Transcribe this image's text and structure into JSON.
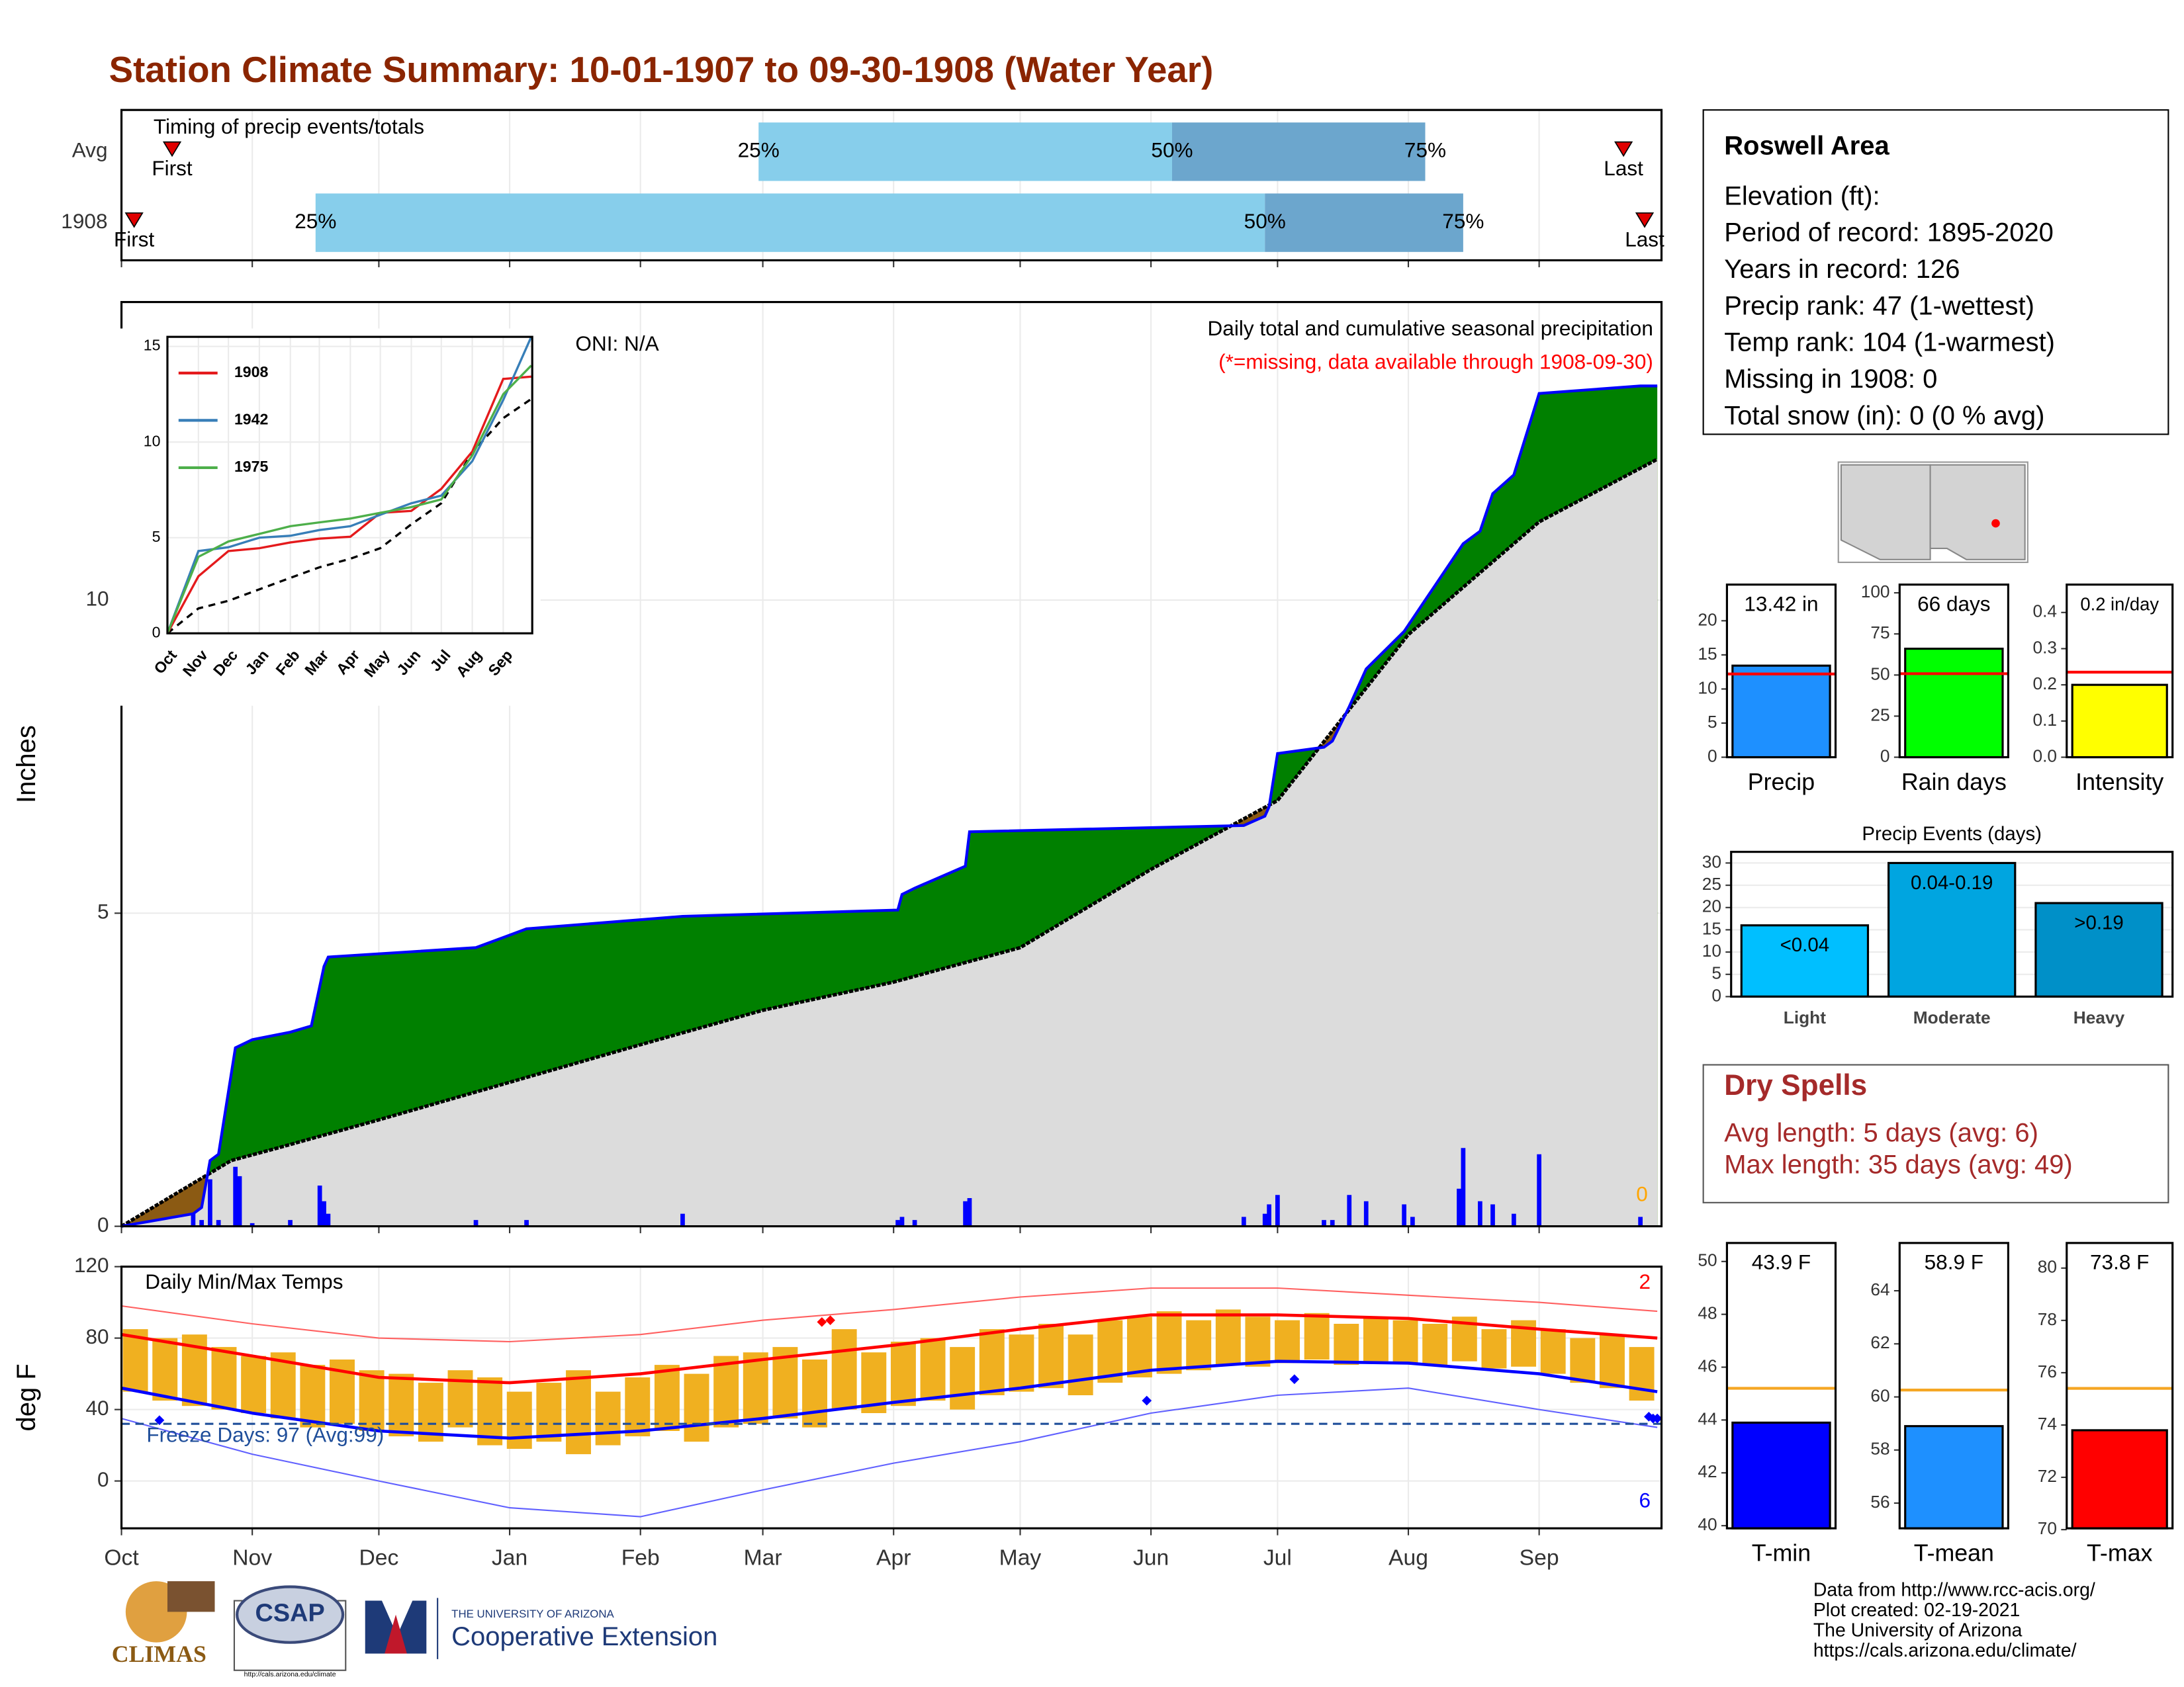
{
  "title": "Station Climate Summary: 10-01-1907 to 09-30-1908 (Water Year)",
  "info": {
    "station": "Roswell Area",
    "lines": [
      "Elevation (ft):",
      "Period of record: 1895-2020",
      "Years in record: 126",
      "Precip rank: 47 (1-wettest)",
      "Temp rank: 104 (1-warmest)",
      "Missing in 1908: 0",
      "Total snow (in): 0 (0 % avg)"
    ]
  },
  "dry_spells": {
    "title": "Dry Spells",
    "lines": [
      "Avg length: 5 days (avg: 6)",
      "Max length: 35 days (avg: 49)"
    ]
  },
  "footer": [
    "Data from http://www.rcc-acis.org/",
    "Plot created: 02-19-2021",
    "The University of Arizona",
    "https://cals.arizona.edu/climate/"
  ],
  "logos": [
    "CLIMAS",
    "CSAP",
    "http://cals.arizona.edu/climate",
    "THE UNIVERSITY OF ARIZONA",
    "Cooperative Extension"
  ],
  "chart_data": [
    {
      "type": "timing",
      "title": "Timing of precip events/totals",
      "categories": [
        "Avg",
        "1908"
      ],
      "first_label": "First",
      "last_label": "Last",
      "quantile_labels": [
        "25%",
        "50%",
        "75%"
      ],
      "rows": [
        {
          "first": 12,
          "q25": 151,
          "q50": 249,
          "q75": 309,
          "last": 356
        },
        {
          "first": 3,
          "q25": 46,
          "q50": 271,
          "q75": 318,
          "last": 361
        }
      ],
      "xlim": [
        0,
        365
      ],
      "colors": [
        "#87ceeb",
        "#6ca6cd"
      ],
      "marker_color": "#e00000"
    },
    {
      "type": "cumulative",
      "title": "Daily total and cumulative seasonal precipitation",
      "subtitle": "(*=missing, data available through 1908-09-30)",
      "annotation": "ONI: N/A",
      "ylabel": "Inches",
      "missing_count": 0,
      "xlim": [
        0,
        365
      ],
      "ylim": [
        0,
        14.76
      ],
      "yticks": [
        0,
        5,
        10
      ],
      "grid": true,
      "cumulative": {
        "color": "#0000ff",
        "above_color": "#008000",
        "x": [
          0,
          17,
          19,
          21,
          23,
          27,
          31,
          40,
          45,
          48,
          49,
          84,
          96,
          133,
          184,
          185,
          188,
          200,
          201,
          266,
          271,
          272,
          274,
          285,
          287,
          291,
          295,
          304,
          318,
          322,
          325,
          330,
          336,
          360,
          364
        ],
        "values": [
          0,
          0.2,
          0.3,
          1.05,
          1.15,
          2.85,
          2.98,
          3.1,
          3.2,
          4.15,
          4.3,
          4.45,
          4.75,
          4.95,
          5.05,
          5.3,
          5.4,
          5.75,
          6.3,
          6.4,
          6.55,
          6.7,
          7.55,
          7.65,
          7.75,
          8.3,
          8.9,
          9.5,
          10.9,
          11.1,
          11.7,
          12.0,
          13.3,
          13.42,
          13.42
        ]
      },
      "average": {
        "color": "#000000",
        "fill": "#dcdcdc",
        "below_color": "#8b5a13",
        "x": [
          0,
          26,
          37,
          61,
          92,
          123,
          152,
          183,
          213,
          244,
          274,
          305,
          336,
          364
        ],
        "values": [
          0,
          1.05,
          1.25,
          1.7,
          2.3,
          2.9,
          3.45,
          3.9,
          4.45,
          5.7,
          6.8,
          9.45,
          11.25,
          12.25
        ]
      },
      "daily": {
        "color": "#0000ff",
        "x": [
          17,
          19,
          21,
          23,
          27,
          28,
          31,
          40,
          47,
          48,
          49,
          84,
          96,
          133,
          184,
          185,
          188,
          200,
          201,
          266,
          271,
          272,
          274,
          285,
          287,
          291,
          295,
          304,
          306,
          317,
          318,
          322,
          325,
          330,
          336,
          360
        ],
        "values": [
          0.2,
          0.1,
          0.75,
          0.1,
          0.95,
          0.8,
          0.05,
          0.1,
          0.65,
          0.4,
          0.2,
          0.1,
          0.1,
          0.2,
          0.1,
          0.15,
          0.1,
          0.4,
          0.45,
          0.15,
          0.2,
          0.35,
          0.5,
          0.1,
          0.1,
          0.5,
          0.4,
          0.35,
          0.15,
          0.6,
          1.25,
          0.4,
          0.35,
          0.2,
          1.15,
          0.15
        ]
      }
    },
    {
      "type": "line",
      "xlim": [
        0,
        365
      ],
      "ylim": [
        0,
        15.5
      ],
      "yticks": [
        0,
        5,
        10,
        15
      ],
      "xticks": [
        {
          "value": 0,
          "label": "Oct"
        },
        {
          "value": 31,
          "label": "Nov"
        },
        {
          "value": 61,
          "label": "Dec"
        },
        {
          "value": 92,
          "label": "Jan"
        },
        {
          "value": 123,
          "label": "Feb"
        },
        {
          "value": 152,
          "label": "Mar"
        },
        {
          "value": 183,
          "label": "Apr"
        },
        {
          "value": 213,
          "label": "May"
        },
        {
          "value": 244,
          "label": "Jun"
        },
        {
          "value": 274,
          "label": "Jul"
        },
        {
          "value": 305,
          "label": "Aug"
        },
        {
          "value": 336,
          "label": "Sep"
        }
      ],
      "x": [
        0,
        31,
        61,
        92,
        123,
        152,
        183,
        213,
        244,
        274,
        305,
        336,
        364
      ],
      "series": [
        {
          "name": "1908",
          "color": "#e41a1c",
          "values": [
            0,
            2.98,
            4.3,
            4.45,
            4.75,
            4.95,
            5.05,
            6.3,
            6.4,
            7.55,
            9.5,
            13.3,
            13.42
          ]
        },
        {
          "name": "1942",
          "color": "#377eb8",
          "values": [
            0,
            4.3,
            4.5,
            5.0,
            5.1,
            5.4,
            5.6,
            6.2,
            6.8,
            7.2,
            9.0,
            12.2,
            15.5
          ]
        },
        {
          "name": "1975",
          "color": "#4daf4a",
          "values": [
            0,
            4.0,
            4.8,
            5.2,
            5.6,
            5.8,
            6.0,
            6.3,
            6.6,
            7.0,
            9.3,
            12.5,
            14.0
          ]
        }
      ],
      "average": {
        "color": "#000000",
        "values": [
          0,
          1.3,
          1.7,
          2.3,
          2.9,
          3.45,
          3.9,
          4.45,
          5.7,
          6.8,
          9.45,
          11.25,
          12.25
        ]
      }
    },
    {
      "type": "bar",
      "categories": [
        "Precip"
      ],
      "values": [
        13.42
      ],
      "value_labels": [
        "13.42 in"
      ],
      "reference": 12.2,
      "reference_color": "#ff0000",
      "color": "#1e90ff",
      "ylim": [
        0,
        25.3
      ],
      "yticks": [
        0,
        5,
        10,
        15,
        20
      ]
    },
    {
      "type": "bar",
      "categories": [
        "Rain days"
      ],
      "values": [
        66
      ],
      "value_labels": [
        "66 days"
      ],
      "reference": 50.8,
      "reference_color": "#ff0000",
      "color": "#00ff00",
      "ylim": [
        0,
        105
      ],
      "yticks": [
        0,
        25,
        50,
        75,
        100
      ]
    },
    {
      "type": "bar",
      "categories": [
        "Intensity"
      ],
      "values": [
        0.2
      ],
      "value_labels": [
        "0.2 in/day"
      ],
      "reference": 0.235,
      "reference_color": "#ff0000",
      "color": "#ffff00",
      "ylim": [
        0,
        0.477
      ],
      "yticks": [
        {
          "value": 0,
          "label": "0.0"
        },
        0.1,
        0.2,
        0.3,
        0.4
      ]
    },
    {
      "type": "bar",
      "title": "Precip Events (days)",
      "categories": [
        "Light",
        "Moderate",
        "Heavy"
      ],
      "values": [
        16,
        30,
        21
      ],
      "bar_labels": [
        "<0.04",
        "0.04-0.19",
        ">0.19"
      ],
      "colors": [
        "#00bfff",
        "#00a5e0",
        "#0090c8"
      ],
      "ylim": [
        0,
        32.5
      ],
      "yticks": [
        0,
        5,
        10,
        15,
        20,
        25,
        30
      ],
      "grid": true
    },
    {
      "type": "temperature",
      "title": "Daily Min/Max Temps",
      "ylabel": "deg F",
      "xlim": [
        0,
        365
      ],
      "ylim": [
        -26.5,
        120
      ],
      "yticks": [
        0,
        40,
        80,
        120
      ],
      "grid": true,
      "xticks": [
        {
          "value": 0,
          "label": "Oct"
        },
        {
          "value": 31,
          "label": "Nov"
        },
        {
          "value": 61,
          "label": "Dec"
        },
        {
          "value": 92,
          "label": "Jan"
        },
        {
          "value": 123,
          "label": "Feb"
        },
        {
          "value": 152,
          "label": "Mar"
        },
        {
          "value": 183,
          "label": "Apr"
        },
        {
          "value": 213,
          "label": "May"
        },
        {
          "value": 244,
          "label": "Jun"
        },
        {
          "value": 274,
          "label": "Jul"
        },
        {
          "value": 305,
          "label": "Aug"
        },
        {
          "value": 336,
          "label": "Sep"
        }
      ],
      "daily": {
        "color": "#f0b020",
        "x": [
          0,
          7,
          14,
          21,
          28,
          35,
          42,
          49,
          56,
          63,
          70,
          77,
          84,
          91,
          98,
          105,
          112,
          119,
          126,
          133,
          140,
          147,
          154,
          161,
          168,
          175,
          182,
          189,
          196,
          203,
          210,
          217,
          224,
          231,
          238,
          245,
          252,
          259,
          266,
          273,
          280,
          287,
          294,
          301,
          308,
          315,
          322,
          329,
          336,
          343,
          350,
          357
        ],
        "max": [
          85,
          80,
          82,
          75,
          70,
          72,
          65,
          68,
          62,
          60,
          55,
          62,
          58,
          50,
          55,
          62,
          50,
          58,
          65,
          60,
          70,
          72,
          75,
          68,
          85,
          72,
          78,
          80,
          75,
          85,
          82,
          88,
          82,
          90,
          92,
          95,
          90,
          96,
          92,
          90,
          94,
          88,
          92,
          90,
          88,
          92,
          85,
          90,
          85,
          80,
          82,
          75
        ],
        "min": [
          50,
          45,
          42,
          40,
          38,
          35,
          30,
          32,
          28,
          25,
          22,
          30,
          20,
          18,
          22,
          15,
          20,
          25,
          28,
          22,
          30,
          32,
          35,
          30,
          40,
          38,
          42,
          45,
          40,
          48,
          50,
          52,
          48,
          55,
          58,
          60,
          62,
          65,
          64,
          66,
          68,
          65,
          67,
          66,
          65,
          67,
          63,
          64,
          60,
          55,
          52,
          45
        ]
      },
      "monthly_x": [
        0,
        31,
        61,
        92,
        123,
        152,
        183,
        213,
        244,
        274,
        305,
        336,
        364
      ],
      "normal_max": {
        "color": "#ff0000",
        "values": [
          82,
          70,
          58,
          55,
          60,
          68,
          76,
          85,
          93,
          93,
          91,
          85,
          80
        ]
      },
      "normal_min": {
        "color": "#0000ff",
        "values": [
          52,
          38,
          28,
          24,
          28,
          35,
          44,
          52,
          62,
          67,
          66,
          60,
          50
        ]
      },
      "record_max": {
        "color": "#ff6060",
        "values": [
          98,
          88,
          80,
          78,
          82,
          90,
          96,
          103,
          108,
          108,
          104,
          100,
          95
        ]
      },
      "record_min": {
        "color": "#6060ff",
        "values": [
          35,
          15,
          0,
          -15,
          -20,
          -5,
          10,
          22,
          38,
          48,
          52,
          40,
          30
        ]
      },
      "record_high_marks": {
        "color": "#ff0000",
        "x": [
          166,
          168
        ],
        "values": [
          89,
          90
        ]
      },
      "record_low_marks": {
        "color": "#0000ff",
        "x": [
          9,
          243,
          278,
          362,
          363,
          364
        ],
        "values": [
          34,
          45,
          57,
          36,
          35,
          35
        ]
      },
      "record_high_count": 2,
      "record_low_count": 6,
      "freeze_line": 32,
      "freeze_label": "Freeze Days: 97 (Avg:99)",
      "freeze_color": "#1f4e9a"
    },
    {
      "type": "bar",
      "categories": [
        "T-min"
      ],
      "values": [
        43.9
      ],
      "value_labels": [
        "43.9 F"
      ],
      "reference": 45.2,
      "reference_color": "#f5a623",
      "color": "#0000ff",
      "ylim": [
        39.9,
        50.7
      ],
      "yticks": [
        40,
        42,
        44,
        46,
        48,
        50
      ]
    },
    {
      "type": "bar",
      "categories": [
        "T-mean"
      ],
      "values": [
        58.9
      ],
      "value_labels": [
        "58.9 F"
      ],
      "reference": 60.26,
      "reference_color": "#f5a623",
      "color": "#1e90ff",
      "ylim": [
        55.05,
        65.8
      ],
      "yticks": [
        56,
        58,
        60,
        62,
        64
      ]
    },
    {
      "type": "bar",
      "categories": [
        "T-max"
      ],
      "values": [
        73.8
      ],
      "value_labels": [
        "73.8 F"
      ],
      "reference": 75.4,
      "reference_color": "#f5a623",
      "color": "#ff0000",
      "ylim": [
        70.05,
        80.96
      ],
      "yticks": [
        70,
        72,
        74,
        76,
        78,
        80
      ]
    }
  ]
}
